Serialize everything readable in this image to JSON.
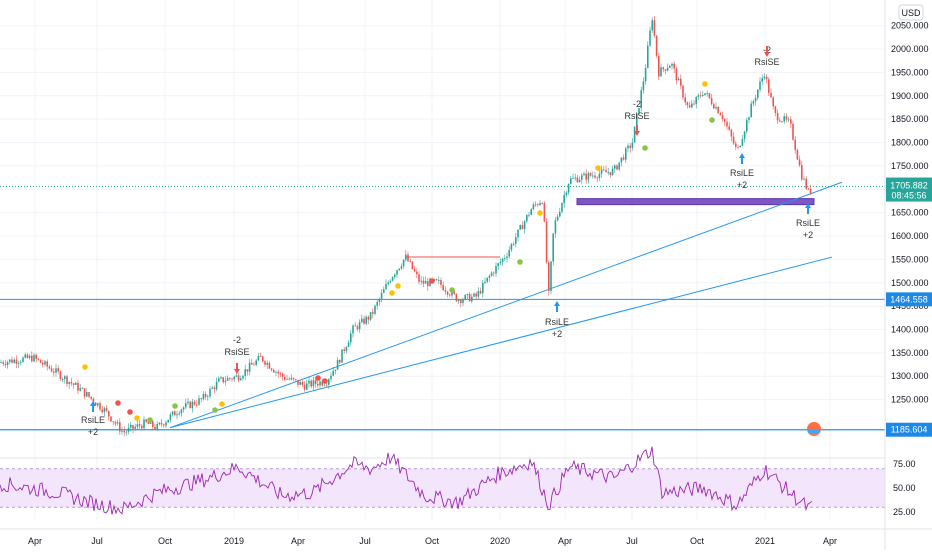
{
  "colors": {
    "up": "#26a69a",
    "down": "#ef5350",
    "trendline": "#2196f3",
    "rsi_line": "#9c27b0",
    "rsi_band": "#f3e5fb",
    "rect": "#7e57c2",
    "grid": "#f0f3fa",
    "axis_text": "#131722"
  },
  "chart_data": [
    {
      "type": "candlestick",
      "name": "price",
      "currency": "USD",
      "x_ticks": [
        "Apr",
        "Jul",
        "Oct",
        "2019",
        "Apr",
        "Jul",
        "Oct",
        "2020",
        "Apr",
        "Jul",
        "Oct",
        "2021",
        "Apr"
      ],
      "y_ticks": [
        "2050.000",
        "2000.000",
        "1950.000",
        "1900.000",
        "1850.000",
        "1800.000",
        "1750.000",
        "1700.000",
        "1650.000",
        "1600.000",
        "1550.000",
        "1500.000",
        "1450.000",
        "1400.000",
        "1350.000",
        "1300.000",
        "1250.000"
      ],
      "ylim": [
        1185,
        2090
      ],
      "approx_close_series": [
        [
          "2018-03-01",
          1330
        ],
        [
          "2018-04-15",
          1340
        ],
        [
          "2018-05-20",
          1305
        ],
        [
          "2018-06-20",
          1270
        ],
        [
          "2018-07-20",
          1230
        ],
        [
          "2018-08-16",
          1180
        ],
        [
          "2018-09-15",
          1200
        ],
        [
          "2018-10-01",
          1190
        ],
        [
          "2018-11-01",
          1230
        ],
        [
          "2018-12-01",
          1250
        ],
        [
          "2018-12-25",
          1290
        ],
        [
          "2019-01-20",
          1300
        ],
        [
          "2019-02-20",
          1340
        ],
        [
          "2019-03-20",
          1300
        ],
        [
          "2019-04-20",
          1280
        ],
        [
          "2019-05-20",
          1290
        ],
        [
          "2019-06-05",
          1330
        ],
        [
          "2019-06-25",
          1400
        ],
        [
          "2019-07-20",
          1430
        ],
        [
          "2019-08-15",
          1510
        ],
        [
          "2019-09-05",
          1555
        ],
        [
          "2019-09-25",
          1500
        ],
        [
          "2019-10-20",
          1500
        ],
        [
          "2019-11-15",
          1465
        ],
        [
          "2019-12-10",
          1470
        ],
        [
          "2019-12-31",
          1520
        ],
        [
          "2020-01-20",
          1560
        ],
        [
          "2020-02-24",
          1660
        ],
        [
          "2020-03-10",
          1680
        ],
        [
          "2020-03-18",
          1470
        ],
        [
          "2020-03-25",
          1620
        ],
        [
          "2020-04-15",
          1720
        ],
        [
          "2020-05-15",
          1730
        ],
        [
          "2020-06-15",
          1740
        ],
        [
          "2020-07-10",
          1800
        ],
        [
          "2020-07-27",
          1950
        ],
        [
          "2020-08-06",
          2070
        ],
        [
          "2020-08-15",
          1950
        ],
        [
          "2020-09-01",
          1970
        ],
        [
          "2020-09-25",
          1870
        ],
        [
          "2020-10-15",
          1910
        ],
        [
          "2020-11-09",
          1860
        ],
        [
          "2020-11-30",
          1780
        ],
        [
          "2020-12-20",
          1880
        ],
        [
          "2021-01-06",
          1950
        ],
        [
          "2021-01-20",
          1860
        ],
        [
          "2021-02-10",
          1840
        ],
        [
          "2021-02-26",
          1730
        ],
        [
          "2021-03-08",
          1690
        ],
        [
          "2021-03-12",
          1706
        ]
      ],
      "price_tags": [
        {
          "value": "1705.882",
          "time": "08:45:56"
        },
        {
          "value": "1464.558"
        },
        {
          "value": "1185.604"
        }
      ],
      "annotations": {
        "rsile": [
          "RsiLE",
          "+2"
        ],
        "rsise": [
          "-2",
          "RsiSE"
        ]
      },
      "horizontal_levels": [
        1705.882,
        1464.558,
        1185.604
      ]
    },
    {
      "type": "line",
      "name": "RSI",
      "y_ticks": [
        "75.00",
        "50.00",
        "25.00"
      ],
      "ylim": [
        20,
        95
      ],
      "overbought": 70,
      "oversold": 30,
      "approx_points": [
        [
          "2018-03-01",
          55
        ],
        [
          "2018-05-20",
          45
        ],
        [
          "2018-07-01",
          35
        ],
        [
          "2018-08-16",
          28
        ],
        [
          "2018-10-01",
          45
        ],
        [
          "2018-12-10",
          60
        ],
        [
          "2019-01-20",
          72
        ],
        [
          "2019-03-20",
          42
        ],
        [
          "2019-05-01",
          45
        ],
        [
          "2019-06-25",
          75
        ],
        [
          "2019-07-20",
          70
        ],
        [
          "2019-08-15",
          82
        ],
        [
          "2019-10-01",
          42
        ],
        [
          "2019-11-15",
          35
        ],
        [
          "2020-01-10",
          65
        ],
        [
          "2020-02-24",
          78
        ],
        [
          "2020-03-18",
          32
        ],
        [
          "2020-04-15",
          72
        ],
        [
          "2020-06-15",
          60
        ],
        [
          "2020-08-06",
          90
        ],
        [
          "2020-08-20",
          45
        ],
        [
          "2020-10-15",
          50
        ],
        [
          "2020-11-30",
          32
        ],
        [
          "2021-01-06",
          70
        ],
        [
          "2021-02-10",
          45
        ],
        [
          "2021-03-08",
          28
        ],
        [
          "2021-03-12",
          30
        ]
      ]
    }
  ]
}
